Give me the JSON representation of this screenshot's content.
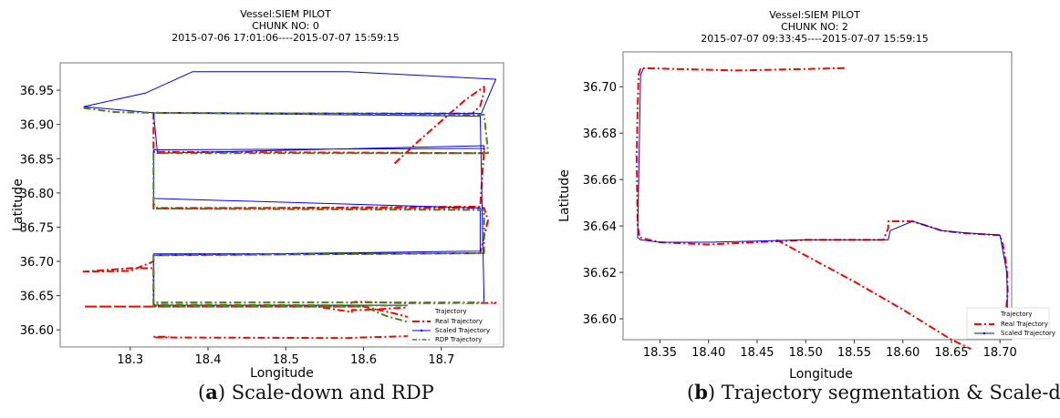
{
  "panels": [
    {
      "caption_letter": "a",
      "caption_text": "Scale-down and RDP",
      "chart_data": {
        "type": "line",
        "title_lines": [
          "Vessel:SIEM PILOT",
          "CHUNK NO: 0",
          "2015-07-06 17:01:06----2015-07-07 15:59:15"
        ],
        "xlabel": "Longitude",
        "ylabel": "Latitude",
        "xlim": [
          18.21,
          18.78
        ],
        "ylim": [
          36.575,
          36.99
        ],
        "xticks": [
          18.3,
          18.4,
          18.5,
          18.6,
          18.7
        ],
        "xtick_labels": [
          "18.3",
          "18.4",
          "18.5",
          "18.6",
          "18.7"
        ],
        "yticks": [
          36.6,
          36.65,
          36.7,
          36.75,
          36.8,
          36.85,
          36.9,
          36.95
        ],
        "ytick_labels": [
          "36.60",
          "36.65",
          "36.70",
          "36.75",
          "36.80",
          "36.85",
          "36.90",
          "36.95"
        ],
        "grid": false,
        "legend_position": "lower-right",
        "legend_header": "Trajectory",
        "series": [
          {
            "name": "Real Trajectory",
            "color": "#ff0000",
            "style": "dashdot",
            "x": [
              18.64,
              18.67,
              18.7,
              18.73,
              18.755,
              18.755,
              18.75,
              18.74,
              18.5,
              18.33,
              18.33,
              18.755,
              18.755,
              18.75,
              18.33,
              18.33,
              18.335,
              18.755,
              18.76,
              18.75,
              18.33,
              18.33,
              18.3,
              18.24,
              18.3,
              18.33,
              18.33,
              18.34,
              18.38,
              18.58,
              18.585,
              18.59,
              18.755,
              18.755,
              18.76,
              18.77,
              18.6,
              18.585,
              18.585,
              18.54,
              18.4,
              18.3,
              18.24,
              18.28,
              18.33,
              18.33,
              18.6,
              18.64,
              18.72,
              18.73,
              18.6,
              18.58,
              18.33,
              18.33,
              18.35
            ],
            "y": [
              36.843,
              36.875,
              36.905,
              36.935,
              36.955,
              36.948,
              36.927,
              36.916,
              36.916,
              36.917,
              36.86,
              36.858,
              36.865,
              36.78,
              36.777,
              36.784,
              36.778,
              36.778,
              36.76,
              36.712,
              36.709,
              36.7,
              36.686,
              36.685,
              36.69,
              36.69,
              36.637,
              36.634,
              36.634,
              36.634,
              36.64,
              36.641,
              36.636,
              36.629,
              36.631,
              36.64,
              36.629,
              36.629,
              36.626,
              36.634,
              36.634,
              36.634,
              36.634,
              36.634,
              36.634,
              36.634,
              36.634,
              36.624,
              36.6,
              36.593,
              36.589,
              36.588,
              36.589,
              36.59,
              36.59
            ]
          },
          {
            "name": "Scaled Trajectory",
            "color": "#0000ff",
            "style": "solid",
            "x": [
              18.24,
              18.32,
              18.38,
              18.58,
              18.77,
              18.75,
              18.33,
              18.335,
              18.755,
              18.755,
              18.33,
              18.33,
              18.75,
              18.75,
              18.33,
              18.33,
              18.755,
              18.33,
              18.33,
              18.735,
              18.745,
              18.33,
              18.335,
              18.755,
              18.75,
              18.33,
              18.24
            ],
            "y": [
              36.926,
              36.946,
              36.977,
              36.977,
              36.966,
              36.912,
              36.917,
              36.858,
              36.869,
              36.865,
              36.863,
              36.792,
              36.778,
              36.715,
              36.709,
              36.711,
              36.712,
              36.711,
              36.636,
              36.636,
              36.636,
              36.636,
              36.636,
              36.636,
              36.916,
              36.917,
              36.926
            ]
          },
          {
            "name": "RDP Trajectory",
            "color": "#4f7f1f",
            "style": "dashdot",
            "x": [
              18.24,
              18.28,
              18.33,
              18.33,
              18.755,
              18.76,
              18.76,
              18.33,
              18.33,
              18.33,
              18.34,
              18.755,
              18.755,
              18.33,
              18.33,
              18.755,
              18.755,
              18.33,
              18.33,
              18.33,
              18.6,
              18.63,
              18.72
            ],
            "y": [
              36.924,
              36.918,
              36.917,
              36.917,
              36.914,
              36.862,
              36.858,
              36.858,
              36.78,
              36.777,
              36.777,
              36.775,
              36.712,
              36.709,
              36.637,
              36.635,
              36.64,
              36.64,
              36.634,
              36.634,
              36.634,
              36.62,
              36.592
            ]
          }
        ]
      }
    },
    {
      "caption_letter": "b",
      "caption_text": "Trajectory segmentation & Scale-down",
      "chart_data": {
        "type": "line",
        "title_lines": [
          "Vessel:SIEM PILOT",
          "CHUNK NO: 2",
          "2015-07-07 09:33:45----2015-07-07 15:59:15"
        ],
        "xlabel": "Longitude",
        "ylabel": "Latitude",
        "xlim": [
          18.312,
          18.712
        ],
        "ylim": [
          36.591,
          36.715
        ],
        "xticks": [
          18.35,
          18.4,
          18.45,
          18.5,
          18.55,
          18.6,
          18.65,
          18.7
        ],
        "xtick_labels": [
          "18.35",
          "18.40",
          "18.45",
          "18.50",
          "18.55",
          "18.60",
          "18.65",
          "18.70"
        ],
        "yticks": [
          36.6,
          36.62,
          36.64,
          36.66,
          36.68,
          36.7
        ],
        "ytick_labels": [
          "36.60",
          "36.62",
          "36.64",
          "36.66",
          "36.68",
          "36.70"
        ],
        "grid": false,
        "legend_position": "lower-right",
        "legend_header": "Trajectory",
        "series": [
          {
            "name": "Real Trajectory",
            "color": "#ff0000",
            "style": "dashdot",
            "x": [
              18.54,
              18.43,
              18.33,
              18.328,
              18.327,
              18.326,
              18.327,
              18.329,
              18.35,
              18.4,
              18.5,
              18.58,
              18.585,
              18.585,
              18.6,
              18.61,
              18.64,
              18.66,
              18.7,
              18.703,
              18.707,
              18.708,
              18.706
            ],
            "y": [
              36.708,
              36.707,
              36.708,
              36.705,
              36.69,
              36.67,
              36.64,
              36.635,
              36.633,
              36.632,
              36.634,
              36.634,
              36.639,
              36.642,
              36.642,
              36.642,
              36.638,
              36.637,
              36.636,
              36.632,
              36.622,
              36.612,
              36.602
            ]
          },
          {
            "name": "",
            "color": "#ff0000",
            "style": "dashdot",
            "x": [
              18.47,
              18.55,
              18.6,
              18.65,
              18.67
            ],
            "y": [
              36.634,
              36.616,
              36.604,
              36.591,
              36.587
            ]
          },
          {
            "name": "Scaled Trajectory",
            "color": "#0000ff",
            "style": "solid",
            "x": [
              18.333,
              18.33,
              18.327,
              18.33,
              18.35,
              18.4,
              18.5,
              18.585,
              18.587,
              18.61,
              18.64,
              18.665,
              18.7,
              18.707,
              18.708
            ],
            "y": [
              36.708,
              36.705,
              36.635,
              36.634,
              36.633,
              36.633,
              36.634,
              36.634,
              36.638,
              36.642,
              36.638,
              36.637,
              36.636,
              36.62,
              36.597
            ]
          }
        ]
      }
    }
  ]
}
